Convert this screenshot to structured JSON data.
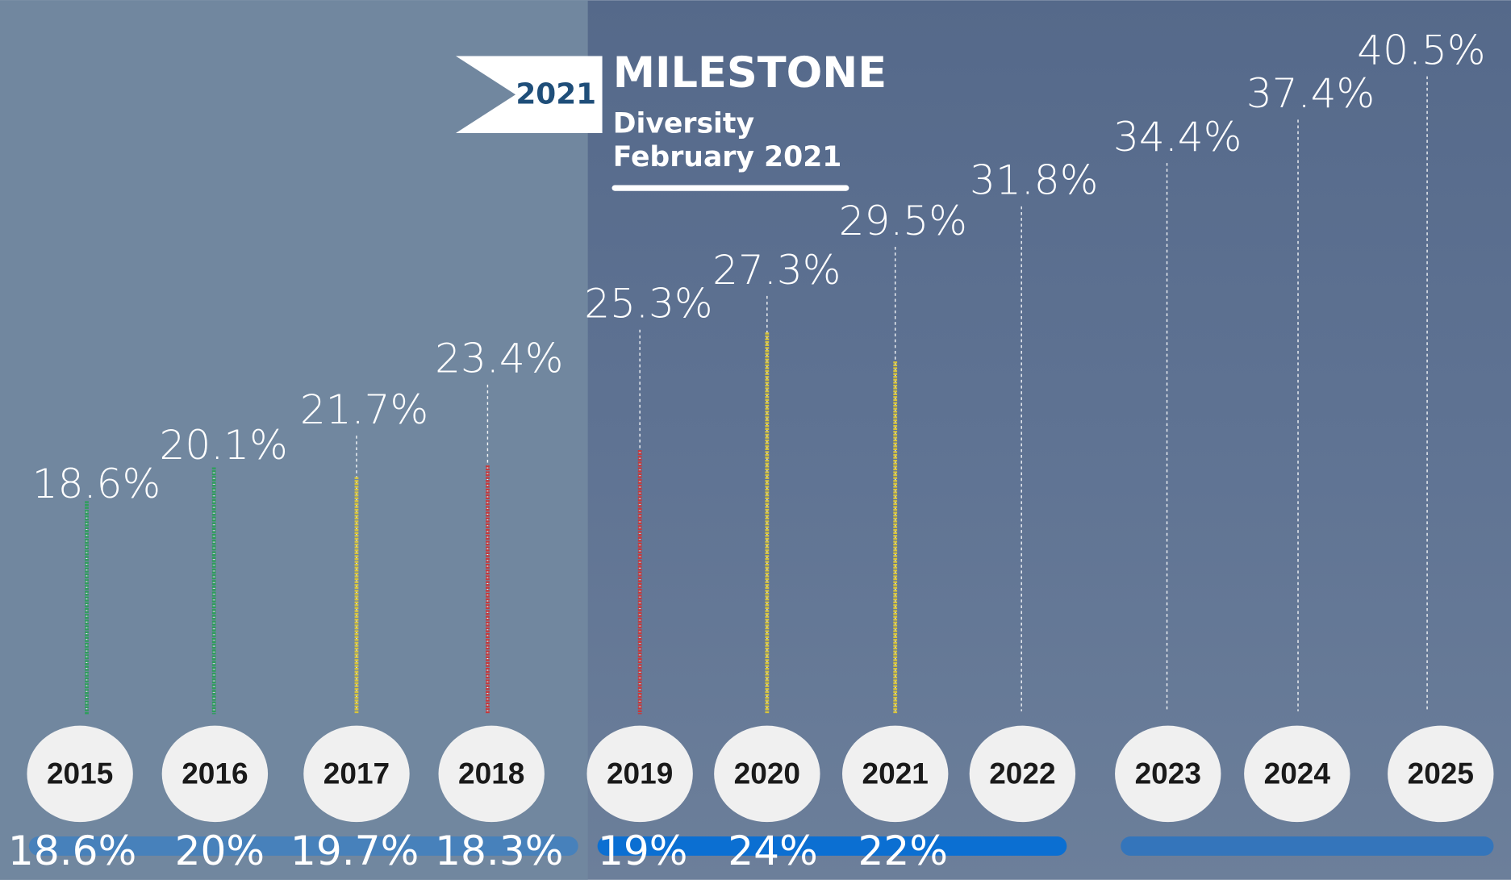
{
  "header": {
    "badge": "2021",
    "title": "MILESTONE",
    "subtitle": "Diversity",
    "date": "February 2021"
  },
  "milestones": [
    {
      "year": "2015",
      "target": "18.6%",
      "actual": "18.6%",
      "color": "#2e9e5b"
    },
    {
      "year": "2016",
      "target": "20.1%",
      "actual": "20%",
      "color": "#2e9e5b"
    },
    {
      "year": "2017",
      "target": "21.7%",
      "actual": "19.7%",
      "color": "#d9c53a"
    },
    {
      "year": "2018",
      "target": "23.4%",
      "actual": "18.3%",
      "color": "#c8383a"
    },
    {
      "year": "2019",
      "target": "25.3%",
      "actual": "19%",
      "color": "#c8383a"
    },
    {
      "year": "2020",
      "target": "27.3%",
      "actual": "24%",
      "color": "#d9c53a"
    },
    {
      "year": "2021",
      "target": "29.5%",
      "actual": "22%",
      "color": "#d9c53a"
    },
    {
      "year": "2022",
      "target": "31.8%",
      "color": "#ffffff"
    },
    {
      "year": "2023",
      "target": "34.4%",
      "color": "#ffffff"
    },
    {
      "year": "2024",
      "target": "37.4%",
      "color": "#ffffff"
    },
    {
      "year": "2025",
      "target": "40.5%",
      "color": "#ffffff"
    }
  ]
}
